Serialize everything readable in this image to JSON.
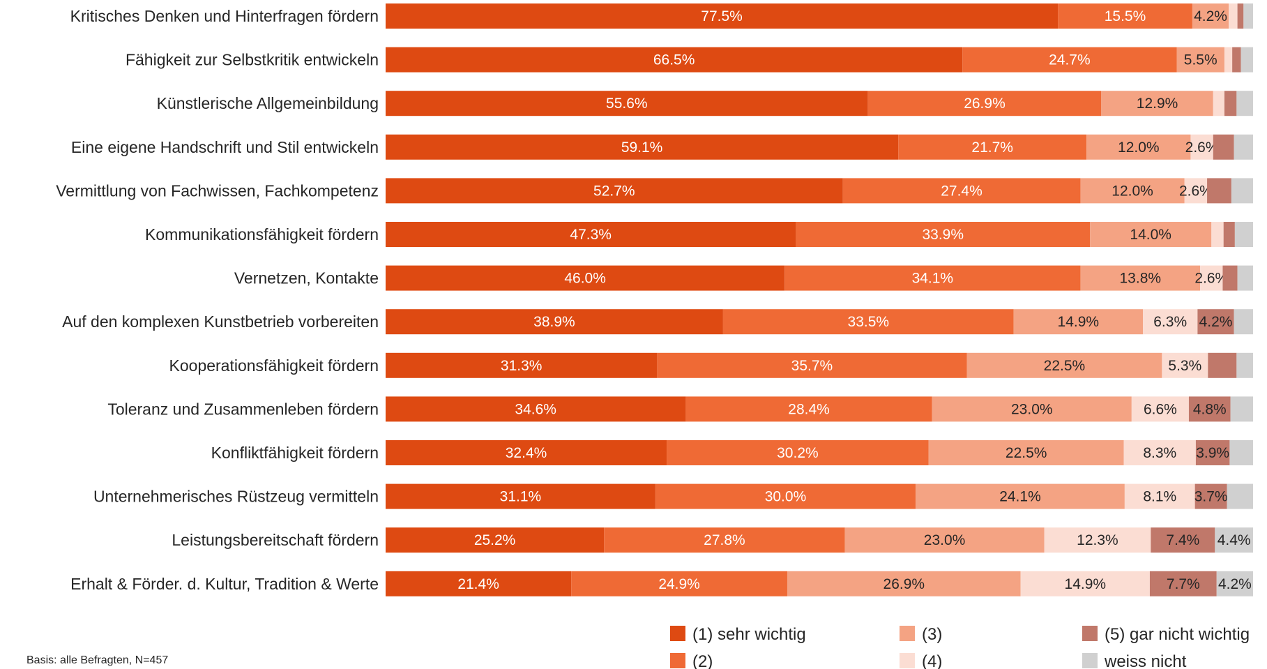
{
  "chart_data": {
    "type": "bar",
    "orientation": "horizontal",
    "stacked": true,
    "percent": true,
    "categories": [
      "Kritisches Denken und Hinterfragen fördern",
      "Fähigkeit zur Selbstkritik entwickeln",
      "Künstlerische Allgemeinbildung",
      "Eine eigene Handschrift und Stil entwickeln",
      "Vermittlung von Fachwissen, Fachkompetenz",
      "Kommunikationsfähigkeit fördern",
      "Vernetzen, Kontakte",
      "Auf den komplexen Kunstbetrieb vorbereiten",
      "Kooperationsfähigkeit fördern",
      "Toleranz und Zusammenleben fördern",
      "Konfliktfähigkeit fördern",
      "Unternehmerisches Rüstzeug vermitteln",
      "Leistungsbereitschaft fördern",
      "Erhalt & Förder. d. Kultur, Tradition & Werte"
    ],
    "series": [
      {
        "name": "(1) sehr wichtig",
        "color": "#DE4A12",
        "values": [
          77.5,
          66.5,
          55.6,
          59.1,
          52.7,
          47.3,
          46.0,
          38.9,
          31.3,
          34.6,
          32.4,
          31.1,
          25.2,
          21.4
        ],
        "labels": [
          "77.5%",
          "66.5%",
          "55.6%",
          "59.1%",
          "52.7%",
          "47.3%",
          "46.0%",
          "38.9%",
          "31.3%",
          "34.6%",
          "32.4%",
          "31.1%",
          "25.2%",
          "21.4%"
        ]
      },
      {
        "name": "(2)",
        "color": "#EF6A35",
        "values": [
          15.5,
          24.7,
          26.9,
          21.7,
          27.4,
          33.9,
          34.1,
          33.5,
          35.7,
          28.4,
          30.2,
          30.0,
          27.8,
          24.9
        ],
        "labels": [
          "15.5%",
          "24.7%",
          "26.9%",
          "21.7%",
          "27.4%",
          "33.9%",
          "34.1%",
          "33.5%",
          "35.7%",
          "28.4%",
          "30.2%",
          "30.0%",
          "27.8%",
          "24.9%"
        ]
      },
      {
        "name": "(3)",
        "color": "#F4A383",
        "values": [
          4.2,
          5.5,
          12.9,
          12.0,
          12.0,
          14.0,
          13.8,
          14.9,
          22.5,
          23.0,
          22.5,
          24.1,
          23.0,
          26.9
        ],
        "labels": [
          "4.2%",
          "5.5%",
          "12.9%",
          "12.0%",
          "12.0%",
          "14.0%",
          "13.8%",
          "14.9%",
          "22.5%",
          "23.0%",
          "22.5%",
          "24.1%",
          "23.0%",
          "26.9%"
        ]
      },
      {
        "name": "(4)",
        "color": "#FBDDD3",
        "values": [
          1.0,
          0.9,
          1.3,
          2.6,
          2.6,
          1.4,
          2.6,
          6.3,
          5.3,
          6.6,
          8.3,
          8.1,
          12.3,
          14.9
        ],
        "labels": [
          "",
          "",
          "",
          "2.6%",
          "2.6%",
          "",
          "2.6%",
          "6.3%",
          "5.3%",
          "6.6%",
          "8.3%",
          "8.1%",
          "12.3%",
          "14.9%"
        ]
      },
      {
        "name": "(5) gar nicht wichtig",
        "color": "#C0786A",
        "values": [
          0.7,
          1.0,
          1.4,
          2.4,
          2.8,
          1.3,
          1.7,
          4.2,
          3.3,
          4.8,
          3.9,
          3.7,
          7.4,
          7.7
        ],
        "labels": [
          "",
          "",
          "",
          "",
          "",
          "",
          "",
          "4.2%",
          "",
          "4.8%",
          "3.9%",
          "3.7%",
          "7.4%",
          "7.7%"
        ]
      },
      {
        "name": "weiss nicht",
        "color": "#D0D0D0",
        "values": [
          1.1,
          1.4,
          1.9,
          2.2,
          2.5,
          2.1,
          1.8,
          2.2,
          1.9,
          2.6,
          2.7,
          3.0,
          4.4,
          4.2
        ],
        "labels": [
          "",
          "",
          "",
          "",
          "",
          "",
          "",
          "",
          "",
          "",
          "",
          "",
          "4.4%",
          "4.2%"
        ]
      }
    ],
    "xlim": [
      0,
      100
    ],
    "legend": "bottom-right",
    "grid": false,
    "label_colors": {
      "(1) sehr wichtig": "#ffffff",
      "(2)": "#ffffff"
    },
    "label_default_color": "#262626"
  },
  "note": "Basis: alle Befragten, N=457"
}
